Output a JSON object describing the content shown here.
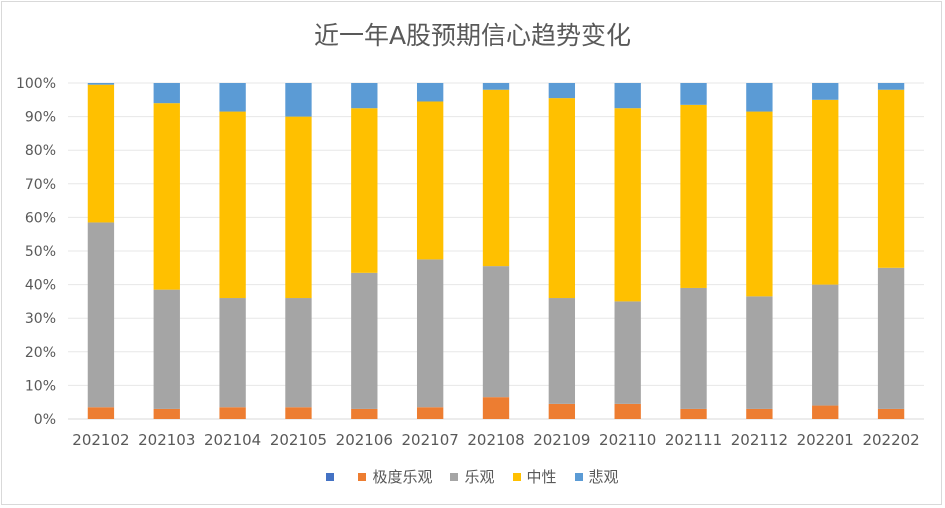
{
  "chart_data": {
    "type": "bar",
    "stacked": true,
    "percent": true,
    "title": "近一年A股预期信心趋势变化",
    "xlabel": "",
    "ylabel": "",
    "ylim": [
      0,
      100
    ],
    "yticks": [
      "0%",
      "10%",
      "20%",
      "30%",
      "40%",
      "50%",
      "60%",
      "70%",
      "80%",
      "90%",
      "100%"
    ],
    "grid": true,
    "legend_position": "bottom",
    "categories": [
      "202102",
      "202103",
      "202104",
      "202105",
      "202106",
      "202107",
      "202108",
      "202109",
      "202110",
      "202111",
      "202112",
      "202201",
      "202202"
    ],
    "series": [
      {
        "name": "",
        "color": "#4472c4",
        "values": [
          0,
          0,
          0,
          0,
          0,
          0,
          0,
          0,
          0,
          0,
          0,
          0,
          0
        ]
      },
      {
        "name": "极度乐观",
        "color": "#ed7d31",
        "values": [
          3.5,
          3,
          3.5,
          3.5,
          3,
          3.5,
          6.5,
          4.5,
          4.5,
          3,
          3,
          4,
          3
        ]
      },
      {
        "name": "乐观",
        "color": "#a5a5a5",
        "values": [
          55,
          35.5,
          32.5,
          32.5,
          40.5,
          44,
          39,
          31.5,
          30.5,
          36,
          33.5,
          36,
          42
        ]
      },
      {
        "name": "中性",
        "color": "#ffc000",
        "values": [
          41,
          55.5,
          55.5,
          54,
          49,
          47,
          52.5,
          59.5,
          57.5,
          54.5,
          55,
          55,
          53
        ]
      },
      {
        "name": "悲观",
        "color": "#5b9bd5",
        "values": [
          0.5,
          6,
          8.5,
          10,
          7.5,
          5.5,
          2,
          4.5,
          7.5,
          6.5,
          8.5,
          5,
          2
        ]
      }
    ]
  }
}
